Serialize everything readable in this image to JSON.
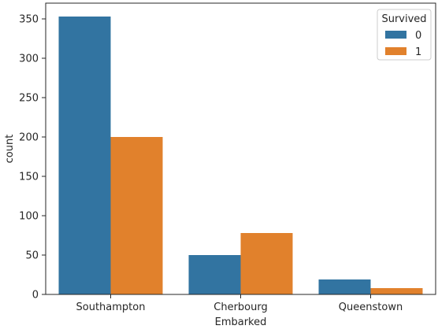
{
  "chart_data": {
    "type": "bar",
    "categories": [
      "Southampton",
      "Cherbourg",
      "Queenstown"
    ],
    "series": [
      {
        "name": "0",
        "values": [
          353,
          50,
          19
        ],
        "color": "#3274a1"
      },
      {
        "name": "1",
        "values": [
          200,
          78,
          8
        ],
        "color": "#e1812c"
      }
    ],
    "xlabel": "Embarked",
    "ylabel": "count",
    "ylim": [
      0,
      370
    ],
    "yticks": [
      0,
      50,
      100,
      150,
      200,
      250,
      300,
      350
    ],
    "legend": {
      "title": "Survived",
      "position": "top-right"
    },
    "grid": false
  }
}
